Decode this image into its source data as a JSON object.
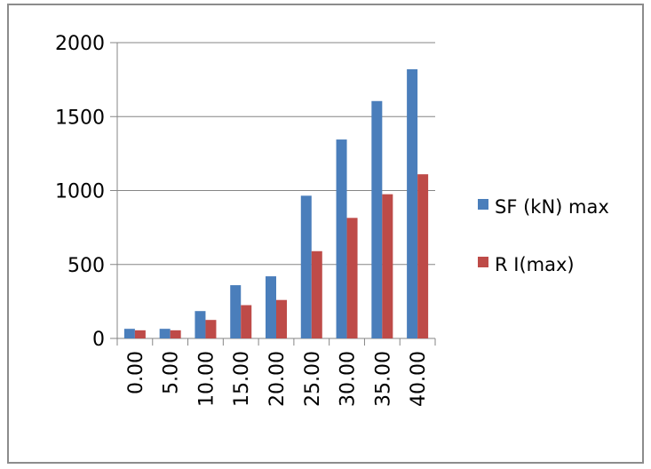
{
  "chart_data": {
    "type": "bar",
    "title": "",
    "xlabel": "",
    "ylabel": "",
    "categories": [
      "0.00",
      "5.00",
      "10.00",
      "15.00",
      "20.00",
      "25.00",
      "30.00",
      "35.00",
      "40.00"
    ],
    "series": [
      {
        "name": "SF (kN) max",
        "color": "#4a7ebb",
        "values": [
          65,
          65,
          185,
          360,
          420,
          965,
          1345,
          1605,
          1820
        ]
      },
      {
        "name": "R I(max)",
        "color": "#be4b48",
        "values": [
          55,
          55,
          125,
          225,
          260,
          590,
          815,
          975,
          1110
        ]
      }
    ],
    "ylim": [
      0,
      2000
    ],
    "yticks": [
      0,
      500,
      1000,
      1500,
      2000
    ],
    "grid": "horizontal",
    "legend_position": "right"
  }
}
